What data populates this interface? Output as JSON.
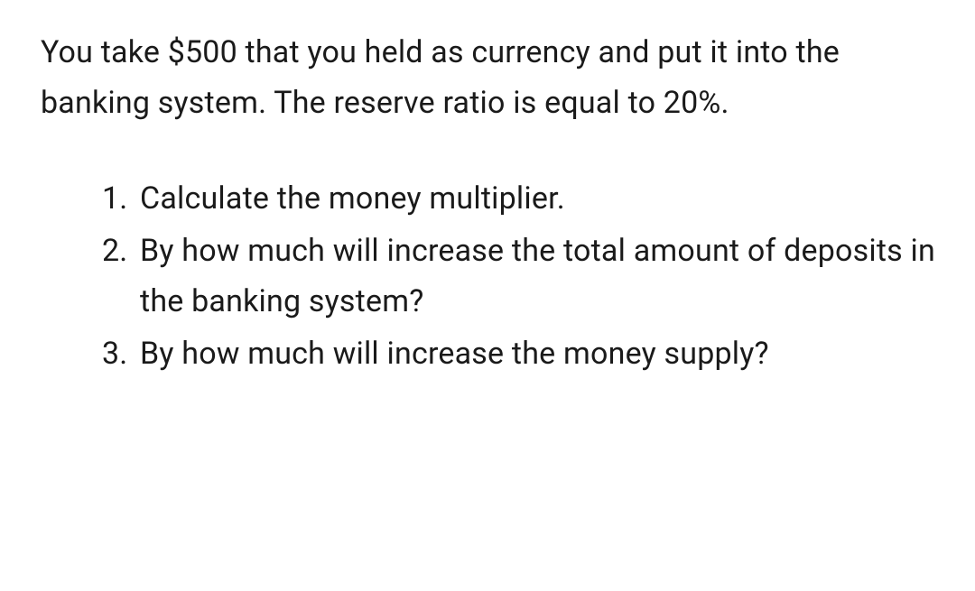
{
  "document": {
    "intro": "You take $500 that you held as currency and put it into the banking system. The reserve ratio is equal to 20%.",
    "questions": [
      {
        "number": "1.",
        "text": "Calculate the money multiplier."
      },
      {
        "number": "2.",
        "text": "By how much will increase the total amount of deposits in the banking system?"
      },
      {
        "number": "3.",
        "text": "By how much will increase the money supply?"
      }
    ],
    "text_color": "#1a1a1a",
    "background_color": "#ffffff",
    "font_size_pt": 26,
    "line_height": 1.65
  }
}
